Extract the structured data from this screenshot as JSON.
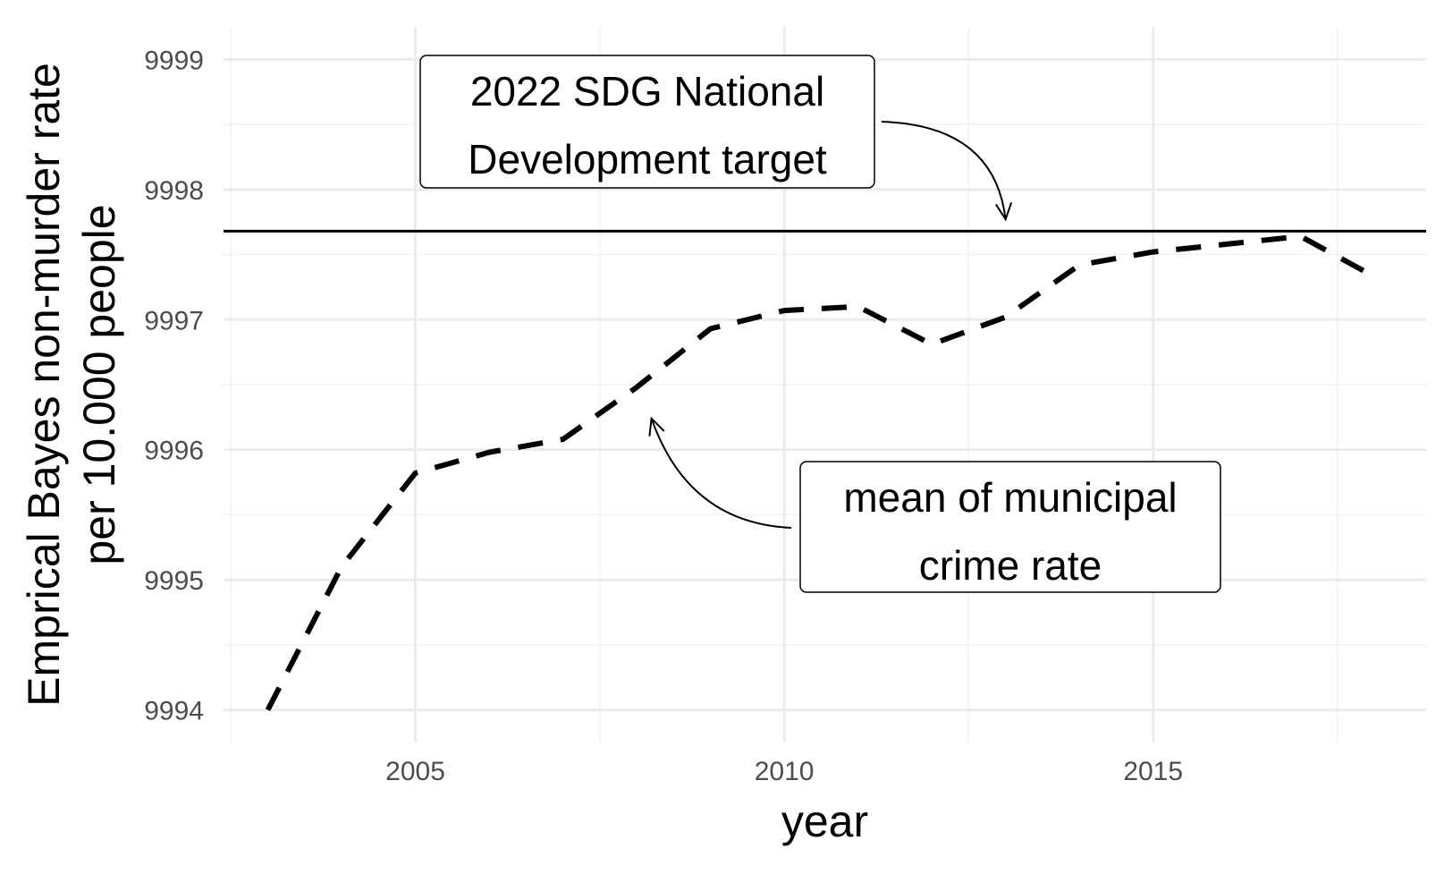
{
  "chart_data": {
    "type": "line",
    "xlabel": "year",
    "ylabel_lines": [
      "Emprical Bayes non-murder rate",
      "per 10.000 people"
    ],
    "xlim": [
      2002.4,
      2018.7
    ],
    "ylim": [
      9993.75,
      9999.25
    ],
    "x_ticks": [
      2005,
      2010,
      2015
    ],
    "y_ticks": [
      9994,
      9995,
      9996,
      9997,
      9998,
      9999
    ],
    "grid": true,
    "series": [
      {
        "line_style": "dashed",
        "color": "#000000",
        "x": [
          2003,
          2004,
          2005,
          2006,
          2007,
          2008,
          2009,
          2010,
          2011,
          2012,
          2013,
          2014,
          2015,
          2016,
          2017,
          2018
        ],
        "y": [
          9994.0,
          9995.1,
          9995.82,
          9995.98,
          9996.08,
          9996.48,
          9996.93,
          9997.07,
          9997.1,
          9996.81,
          9997.02,
          9997.42,
          9997.52,
          9997.58,
          9997.64,
          9997.33
        ]
      }
    ],
    "hline": {
      "y": 9997.68,
      "color": "#000000",
      "line_style": "solid"
    },
    "annotations": [
      {
        "lines": [
          "2022 SDG National",
          "Development target"
        ],
        "arrow_to": [
          2013.0,
          9997.77
        ]
      },
      {
        "lines": [
          "mean of municipal",
          "crime rate"
        ],
        "arrow_to": [
          2008.2,
          9996.24
        ]
      }
    ]
  }
}
